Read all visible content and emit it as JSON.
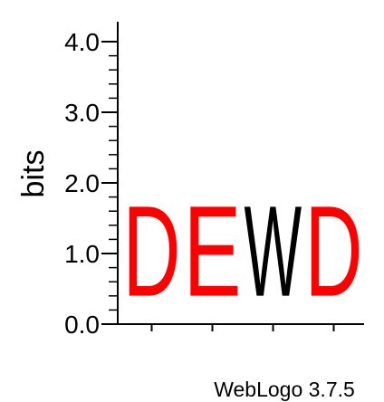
{
  "chart_data": {
    "type": "sequence-logo",
    "ylabel": "bits",
    "ylim": [
      0,
      4
    ],
    "y_ticks": [
      "0.0",
      "1.0",
      "2.0",
      "3.0",
      "4.0"
    ],
    "positions": [
      {
        "letter": "D",
        "bits": 2.05,
        "color": "#ff0000"
      },
      {
        "letter": "E",
        "bits": 2.05,
        "color": "#ff0000"
      },
      {
        "letter": "W",
        "bits": 2.05,
        "color": "#000000"
      },
      {
        "letter": "D",
        "bits": 2.05,
        "color": "#ff0000"
      }
    ],
    "grid": false
  },
  "footer": {
    "credit": "WebLogo 3.7.5"
  }
}
